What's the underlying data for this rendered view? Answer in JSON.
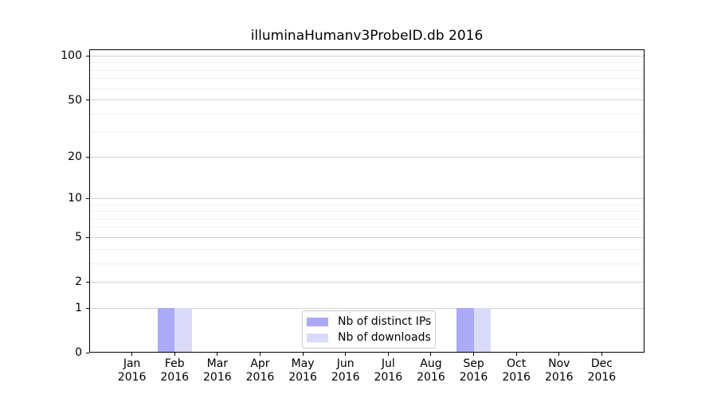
{
  "figure": {
    "title": "illuminaHumanv3ProbeID.db 2016"
  },
  "chart_data": {
    "type": "bar",
    "title": "illuminaHumanv3ProbeID.db 2016",
    "categories": [
      "Jan",
      "Feb",
      "Mar",
      "Apr",
      "May",
      "Jun",
      "Jul",
      "Aug",
      "Sep",
      "Oct",
      "Nov",
      "Dec"
    ],
    "x_tick_year": "2016",
    "series": [
      {
        "name": "Nb of distinct IPs",
        "color": "#aaaaf7",
        "values": [
          0,
          1,
          0,
          0,
          0,
          0,
          0,
          0,
          1,
          0,
          0,
          0
        ]
      },
      {
        "name": "Nb of downloads",
        "color": "#dadaf9",
        "values": [
          0,
          1,
          0,
          0,
          0,
          0,
          0,
          0,
          1,
          0,
          0,
          0
        ]
      }
    ],
    "yscale": "log1p",
    "ylim": [
      0,
      111
    ],
    "y_tick_values": [
      0,
      1,
      2,
      5,
      10,
      20,
      50,
      100
    ],
    "y_tick_labels": [
      "0",
      "1",
      "2",
      "5",
      "10",
      "20",
      "50",
      "100"
    ],
    "y_minor_gridlines": [
      3,
      4,
      6,
      7,
      8,
      9,
      30,
      40,
      60,
      70,
      80,
      90
    ],
    "xlabel": "",
    "ylabel": "",
    "grid": "horizontal-only",
    "legend_position": "lower-center-inside"
  },
  "colors": {
    "background": "#ffffff",
    "bar_distinct_ips": "#aaaaf7",
    "bar_downloads": "#dadaf9",
    "grid_major": "#d4d4d4",
    "grid_minor": "#efefef",
    "spine": "#000000",
    "legend_border": "#cccccc",
    "text": "#000000"
  }
}
